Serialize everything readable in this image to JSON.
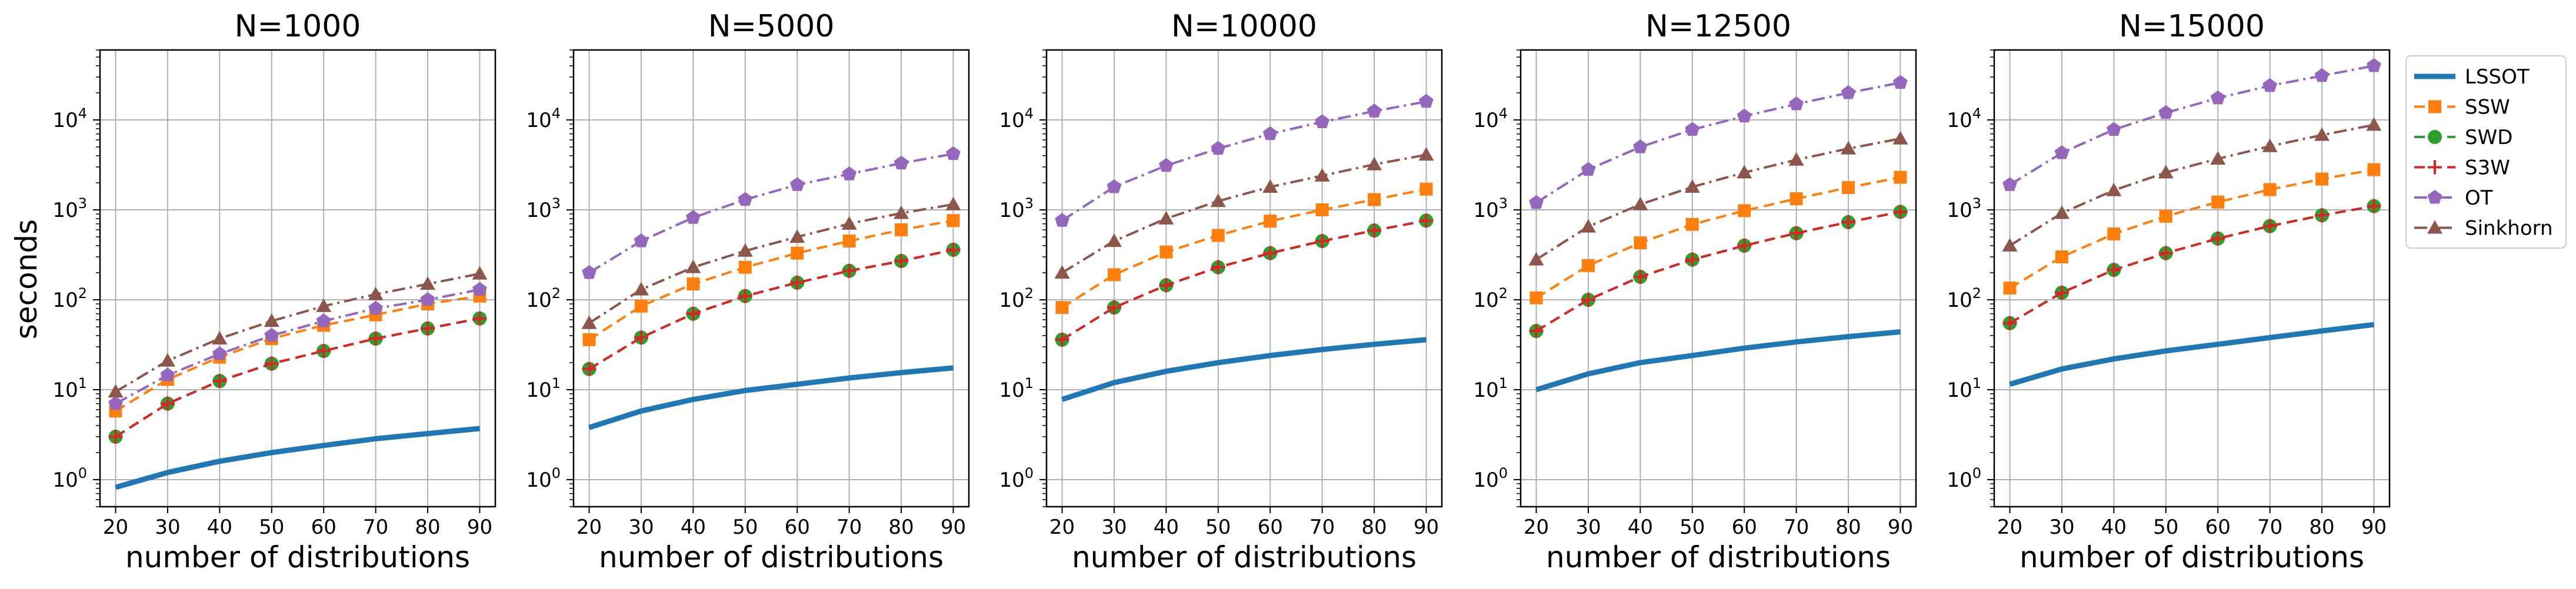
{
  "chart_data": {
    "type": "line",
    "yscale": "log",
    "ylim": [
      0.5,
      60000
    ],
    "xlim": [
      17,
      93
    ],
    "x": [
      20,
      30,
      40,
      50,
      60,
      70,
      80,
      90
    ],
    "xticks": [
      20,
      30,
      40,
      50,
      60,
      70,
      80,
      90
    ],
    "ytick_labels": [
      {
        "value": 1,
        "base": "10",
        "exp": "0"
      },
      {
        "value": 10,
        "base": "10",
        "exp": "1"
      },
      {
        "value": 100,
        "base": "10",
        "exp": "2"
      },
      {
        "value": 1000,
        "base": "10",
        "exp": "3"
      },
      {
        "value": 10000,
        "base": "10",
        "exp": "4"
      }
    ],
    "xlabel": "number of distributions",
    "ylabel": "seconds",
    "grid": true,
    "legend_position": "outside-right",
    "styles": [
      {
        "name": "LSSOT",
        "color": "#1f77b4",
        "dash": "",
        "marker": "none",
        "width": 9
      },
      {
        "name": "SSW",
        "color": "#ff7f0e",
        "dash": "18,10",
        "marker": "square",
        "width": 4
      },
      {
        "name": "SWD",
        "color": "#2ca02c",
        "dash": "18,10",
        "marker": "circle",
        "width": 4
      },
      {
        "name": "S3W",
        "color": "#d62728",
        "dash": "18,10",
        "marker": "plus",
        "width": 4
      },
      {
        "name": "OT",
        "color": "#9467bd",
        "dash": "22,8,4,8",
        "marker": "pentagon",
        "width": 4
      },
      {
        "name": "Sinkhorn",
        "color": "#8c564b",
        "dash": "22,8,4,8",
        "marker": "triangle",
        "width": 4
      }
    ],
    "panels": [
      {
        "title": "N=1000",
        "series": [
          {
            "name": "LSSOT",
            "values": [
              0.82,
              1.2,
              1.6,
              2.0,
              2.4,
              2.85,
              3.25,
              3.7
            ]
          },
          {
            "name": "SSW",
            "values": [
              5.8,
              13,
              23,
              37,
              52,
              68,
              90,
              110
            ]
          },
          {
            "name": "SWD",
            "values": [
              3.0,
              7,
              12.5,
              19.5,
              27,
              37,
              48,
              62
            ]
          },
          {
            "name": "S3W",
            "values": [
              3.0,
              7,
              12.5,
              19.5,
              27,
              37,
              48,
              62
            ]
          },
          {
            "name": "OT",
            "values": [
              7.0,
              14.5,
              25,
              40,
              58,
              80,
              100,
              130
            ]
          },
          {
            "name": "Sinkhorn",
            "values": [
              9.5,
              21,
              37,
              58,
              85,
              115,
              150,
              195
            ]
          }
        ]
      },
      {
        "title": "N=5000",
        "series": [
          {
            "name": "LSSOT",
            "values": [
              3.8,
              5.8,
              7.8,
              9.8,
              11.5,
              13.5,
              15.5,
              17.5
            ]
          },
          {
            "name": "SSW",
            "values": [
              36,
              85,
              150,
              230,
              330,
              450,
              600,
              760
            ]
          },
          {
            "name": "SWD",
            "values": [
              17,
              38,
              70,
              110,
              155,
              210,
              270,
              360
            ]
          },
          {
            "name": "S3W",
            "values": [
              17,
              38,
              70,
              110,
              155,
              210,
              270,
              360
            ]
          },
          {
            "name": "OT",
            "values": [
              200,
              450,
              820,
              1300,
              1900,
              2500,
              3300,
              4200
            ]
          },
          {
            "name": "Sinkhorn",
            "values": [
              55,
              130,
              230,
              350,
              500,
              700,
              920,
              1150
            ]
          }
        ]
      },
      {
        "title": "N=10000",
        "series": [
          {
            "name": "LSSOT",
            "values": [
              7.8,
              12,
              16,
              20,
              24,
              28,
              32,
              36
            ]
          },
          {
            "name": "SSW",
            "values": [
              82,
              190,
              340,
              520,
              750,
              1000,
              1300,
              1700
            ]
          },
          {
            "name": "SWD",
            "values": [
              36,
              82,
              145,
              230,
              330,
              450,
              590,
              760
            ]
          },
          {
            "name": "S3W",
            "values": [
              36,
              82,
              145,
              230,
              330,
              450,
              590,
              760
            ]
          },
          {
            "name": "OT",
            "values": [
              760,
              1800,
              3100,
              4800,
              7000,
              9500,
              12500,
              16000
            ]
          },
          {
            "name": "Sinkhorn",
            "values": [
              200,
              450,
              800,
              1250,
              1800,
              2400,
              3200,
              4100
            ]
          }
        ]
      },
      {
        "title": "N=12500",
        "series": [
          {
            "name": "LSSOT",
            "values": [
              10,
              15,
              20,
              24,
              29,
              34,
              39,
              44
            ]
          },
          {
            "name": "SSW",
            "values": [
              105,
              240,
              430,
              690,
              980,
              1330,
              1770,
              2300
            ]
          },
          {
            "name": "SWD",
            "values": [
              45,
              100,
              180,
              280,
              400,
              550,
              730,
              950
            ]
          },
          {
            "name": "S3W",
            "values": [
              45,
              100,
              180,
              280,
              400,
              550,
              730,
              950
            ]
          },
          {
            "name": "OT",
            "values": [
              1200,
              2800,
              5000,
              7800,
              11000,
              15000,
              20000,
              26000
            ]
          },
          {
            "name": "Sinkhorn",
            "values": [
              280,
              650,
              1150,
              1800,
              2600,
              3600,
              4800,
              6200
            ]
          }
        ]
      },
      {
        "title": "N=15000",
        "series": [
          {
            "name": "LSSOT",
            "values": [
              11.5,
              17,
              22,
              27,
              32,
              38,
              45,
              53
            ]
          },
          {
            "name": "SSW",
            "values": [
              135,
              300,
              540,
              850,
              1220,
              1680,
              2200,
              2800
            ]
          },
          {
            "name": "SWD",
            "values": [
              55,
              120,
              215,
              330,
              480,
              660,
              870,
              1100
            ]
          },
          {
            "name": "S3W",
            "values": [
              55,
              120,
              215,
              330,
              480,
              660,
              870,
              1100
            ]
          },
          {
            "name": "OT",
            "values": [
              1900,
              4300,
              7800,
              12000,
              17500,
              24000,
              31000,
              40000
            ]
          },
          {
            "name": "Sinkhorn",
            "values": [
              400,
              920,
              1650,
              2600,
              3700,
              5100,
              6800,
              8800
            ]
          }
        ]
      }
    ]
  }
}
